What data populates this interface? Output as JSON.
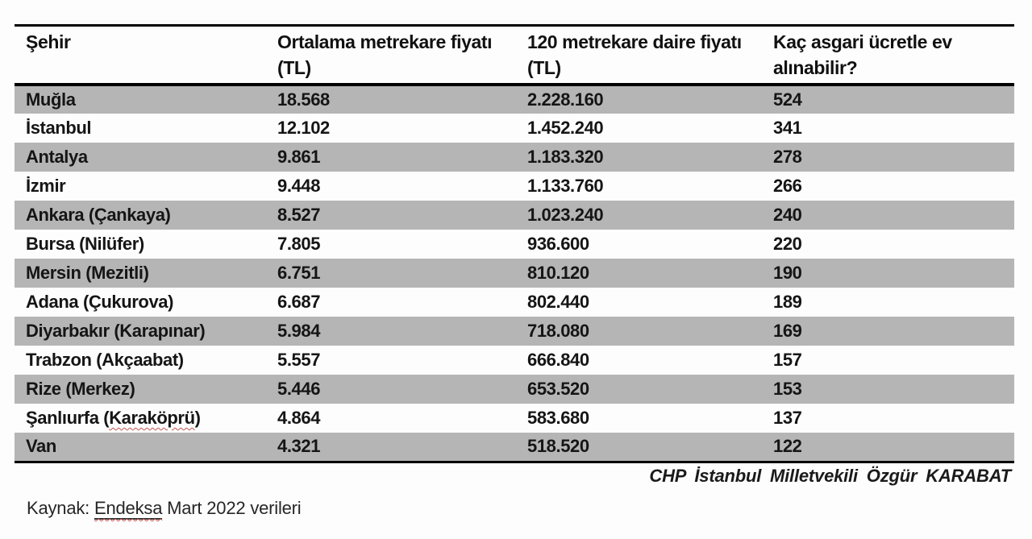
{
  "page": {
    "background_color": "#fdfdfd",
    "stripe_color": "#b5b5b5",
    "border_color": "#000000",
    "spellcheck_squiggle_color": "#c45652"
  },
  "table": {
    "columns": [
      {
        "label": "Şehir"
      },
      {
        "label": "Ortalama metrekare fiyatı (TL)"
      },
      {
        "label": "120 metrekare daire fiyatı (TL)"
      },
      {
        "label": "Kaç asgari ücretle ev alınabilir?"
      }
    ],
    "rows": [
      {
        "city": "Muğla",
        "sqm_price": "18.568",
        "apt_price": "2.228.160",
        "wages": "524"
      },
      {
        "city": "İstanbul",
        "sqm_price": "12.102",
        "apt_price": "1.452.240",
        "wages": "341"
      },
      {
        "city": "Antalya",
        "sqm_price": "9.861",
        "apt_price": "1.183.320",
        "wages": "278"
      },
      {
        "city": "İzmir",
        "sqm_price": "9.448",
        "apt_price": "1.133.760",
        "wages": "266"
      },
      {
        "city": "Ankara (Çankaya)",
        "sqm_price": "8.527",
        "apt_price": "1.023.240",
        "wages": "240"
      },
      {
        "city": "Bursa (Nilüfer)",
        "sqm_price": "7.805",
        "apt_price": "936.600",
        "wages": "220"
      },
      {
        "city": "Mersin (Mezitli)",
        "sqm_price": "6.751",
        "apt_price": "810.120",
        "wages": "190"
      },
      {
        "city": "Adana (Çukurova)",
        "sqm_price": "6.687",
        "apt_price": "802.440",
        "wages": "189"
      },
      {
        "city": "Diyarbakır (Karapınar)",
        "sqm_price": "5.984",
        "apt_price": "718.080",
        "wages": "169"
      },
      {
        "city": "Trabzon (Akçaabat)",
        "sqm_price": "5.557",
        "apt_price": "666.840",
        "wages": "157"
      },
      {
        "city": "Rize (Merkez)",
        "sqm_price": "5.446",
        "apt_price": "653.520",
        "wages": "153"
      },
      {
        "city": "Şanlıurfa (Karaköprü)",
        "spellcheck_part": "Karaköprü",
        "sqm_price": "4.864",
        "apt_price": "583.680",
        "wages": "137"
      },
      {
        "city": "Van",
        "sqm_price": "4.321",
        "apt_price": "518.520",
        "wages": "122"
      }
    ]
  },
  "attribution": "CHP İstanbul Milletvekili Özgür KARABAT",
  "source": {
    "prefix": "Kaynak: ",
    "source_name": "Endeksa",
    "suffix": " Mart 2022 verileri"
  },
  "chart_data": {
    "type": "table",
    "title": "",
    "columns": [
      "Şehir",
      "Ortalama metrekare fiyatı (TL)",
      "120 metrekare daire fiyatı (TL)",
      "Kaç asgari ücretle ev alınabilir?"
    ],
    "rows": [
      [
        "Muğla",
        18568,
        2228160,
        524
      ],
      [
        "İstanbul",
        12102,
        1452240,
        341
      ],
      [
        "Antalya",
        9861,
        1183320,
        278
      ],
      [
        "İzmir",
        9448,
        1133760,
        266
      ],
      [
        "Ankara (Çankaya)",
        8527,
        1023240,
        240
      ],
      [
        "Bursa (Nilüfer)",
        7805,
        936600,
        220
      ],
      [
        "Mersin (Mezitli)",
        6751,
        810120,
        190
      ],
      [
        "Adana (Çukurova)",
        6687,
        802440,
        189
      ],
      [
        "Diyarbakır (Karapınar)",
        5984,
        718080,
        169
      ],
      [
        "Trabzon (Akçaabat)",
        5557,
        666840,
        157
      ],
      [
        "Rize (Merkez)",
        5446,
        653520,
        153
      ],
      [
        "Şanlıurfa (Karaköprü)",
        4864,
        583680,
        137
      ],
      [
        "Van",
        4321,
        518520,
        122
      ]
    ],
    "annotations": [
      "CHP İstanbul Milletvekili Özgür KARABAT",
      "Kaynak: Endeksa Mart 2022 verileri"
    ],
    "layout": {
      "striped": true,
      "stripe_starts_on_first_row": true,
      "grid": false,
      "legend": "none"
    }
  }
}
